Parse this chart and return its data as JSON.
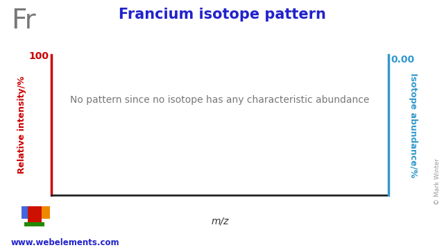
{
  "title": "Francium isotope pattern",
  "element_symbol": "Fr",
  "xlabel": "m/z",
  "ylabel_left": "Relative intensity/%",
  "ylabel_right": "Isotope abundance/%",
  "no_data_text": "No pattern since no isotope has any characteristic abundance",
  "ylim": [
    0,
    100
  ],
  "right_ytick_label": "0.00",
  "title_color": "#2222cc",
  "left_axis_color": "#cc0000",
  "right_axis_color": "#3399cc",
  "element_symbol_color": "#777777",
  "no_data_text_color": "#777777",
  "website_text": "www.webelements.com",
  "copyright_text": "© Mark Winter",
  "background_color": "#ffffff",
  "plot_bg_color": "#ffffff",
  "legend_colors": {
    "blue": "#4466dd",
    "red": "#cc1100",
    "orange": "#ee8800",
    "green": "#228800"
  }
}
